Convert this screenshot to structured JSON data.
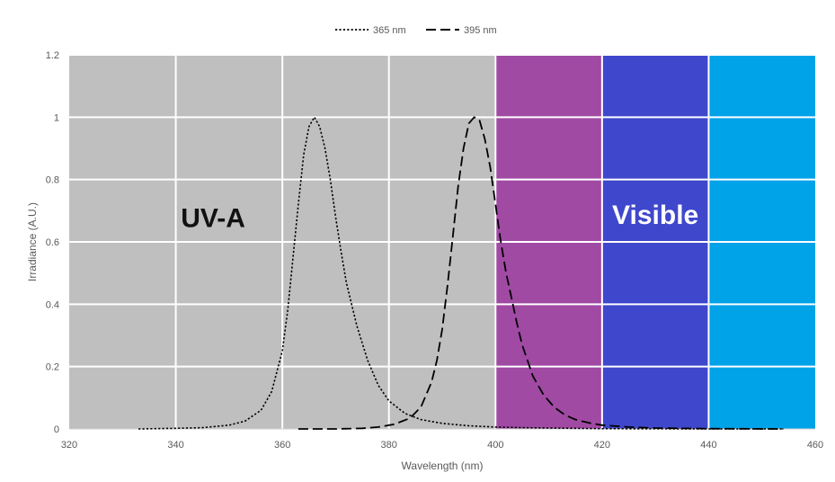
{
  "chart_data": {
    "type": "line",
    "title": "",
    "xlabel": "Wavelength (nm)",
    "ylabel": "Irradiance (A.U.)",
    "xlim": [
      320,
      460
    ],
    "ylim": [
      0,
      1.2
    ],
    "x_ticks": [
      "320",
      "340",
      "360",
      "380",
      "400",
      "420",
      "440",
      "460"
    ],
    "y_ticks": [
      "0",
      "0.2",
      "0.4",
      "0.6",
      "0.8",
      "1",
      "1.2"
    ],
    "grid": true,
    "legend_position": "top",
    "background_bands": [
      {
        "x0": 320,
        "x1": 400,
        "color": "#bfbfbf"
      },
      {
        "x0": 400,
        "x1": 420,
        "color": "#a04aa4"
      },
      {
        "x0": 420,
        "x1": 440,
        "color": "#3f47cc"
      },
      {
        "x0": 440,
        "x1": 460,
        "color": "#00a2e8"
      }
    ],
    "annotations": [
      {
        "text": "UV-A",
        "x": 347,
        "y": 0.68,
        "color": "#111111"
      },
      {
        "text": "Visible",
        "x": 430,
        "y": 0.69,
        "color": "#ffffff"
      }
    ],
    "series": [
      {
        "name": "365 nm",
        "dash": "dotted",
        "color": "#000000",
        "x": [
          333,
          340,
          345,
          350,
          353,
          356,
          358,
          360,
          361,
          362,
          363,
          364,
          365,
          366,
          367,
          368,
          369,
          370,
          371,
          372,
          374,
          376,
          378,
          380,
          383,
          386,
          390,
          395,
          400,
          405,
          410,
          420,
          440,
          454
        ],
        "y": [
          0.0,
          0.002,
          0.004,
          0.012,
          0.025,
          0.06,
          0.12,
          0.25,
          0.38,
          0.55,
          0.72,
          0.88,
          0.97,
          1.0,
          0.97,
          0.9,
          0.8,
          0.68,
          0.57,
          0.47,
          0.33,
          0.22,
          0.14,
          0.09,
          0.05,
          0.03,
          0.018,
          0.01,
          0.006,
          0.004,
          0.003,
          0.001,
          0.0,
          0.0
        ]
      },
      {
        "name": "395 nm",
        "dash": "dashed",
        "color": "#000000",
        "x": [
          363,
          370,
          375,
          378,
          381,
          384,
          386,
          388,
          389,
          390,
          391,
          392,
          393,
          394,
          395,
          396,
          397,
          398,
          399,
          400,
          401,
          402,
          403,
          404,
          405,
          407,
          409,
          411,
          413,
          415,
          418,
          420,
          425,
          430,
          440,
          454
        ],
        "y": [
          0.0,
          0.0,
          0.002,
          0.006,
          0.015,
          0.035,
          0.07,
          0.15,
          0.22,
          0.32,
          0.46,
          0.62,
          0.78,
          0.9,
          0.98,
          1.0,
          0.99,
          0.93,
          0.84,
          0.72,
          0.6,
          0.5,
          0.42,
          0.34,
          0.27,
          0.17,
          0.11,
          0.07,
          0.045,
          0.03,
          0.018,
          0.012,
          0.006,
          0.003,
          0.001,
          0.0
        ]
      }
    ]
  }
}
